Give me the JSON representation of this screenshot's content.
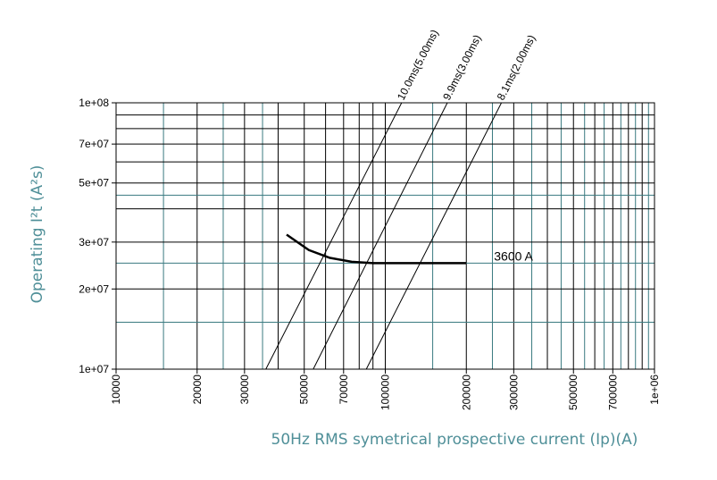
{
  "chart_data": {
    "type": "line",
    "xlabel": "50Hz RMS symetrical prospective current (Ip)(A)",
    "ylabel": "Operating I²t (A²s)",
    "xscale": "log",
    "yscale": "log",
    "xlim": [
      10000,
      1000000
    ],
    "ylim": [
      10000000,
      100000000
    ],
    "x_ticks": [
      "10000",
      "20000",
      "30000",
      "50000",
      "70000",
      "100000",
      "200000",
      "300000",
      "500000",
      "700000",
      "1e+06"
    ],
    "y_ticks": [
      "1e+07",
      "2e+07",
      "3e+07",
      "5e+07",
      "7e+07",
      "1e+08"
    ],
    "grid": true,
    "series": [
      {
        "name": "3600 A",
        "color": "#000000",
        "points": [
          [
            43000,
            32000000
          ],
          [
            52000,
            28000000
          ],
          [
            62000,
            26200000
          ],
          [
            75000,
            25300000
          ],
          [
            90000,
            25000000
          ],
          [
            120000,
            25000000
          ],
          [
            200000,
            25000000
          ]
        ]
      }
    ],
    "diagonals": [
      {
        "label": "10.0ms(5.00ms)",
        "from": [
          36000,
          10000000
        ],
        "to": [
          115000,
          100000000
        ]
      },
      {
        "label": "9.9ms(3.00ms)",
        "from": [
          54000,
          10000000
        ],
        "to": [
          170000,
          100000000
        ]
      },
      {
        "label": "8.1ms(2.00ms)",
        "from": [
          85000,
          10000000
        ],
        "to": [
          270000,
          100000000
        ]
      }
    ],
    "colors": {
      "grid_major": "#000000",
      "grid_minor": "#3a7a80",
      "axis_title": "#4f8f98"
    }
  }
}
